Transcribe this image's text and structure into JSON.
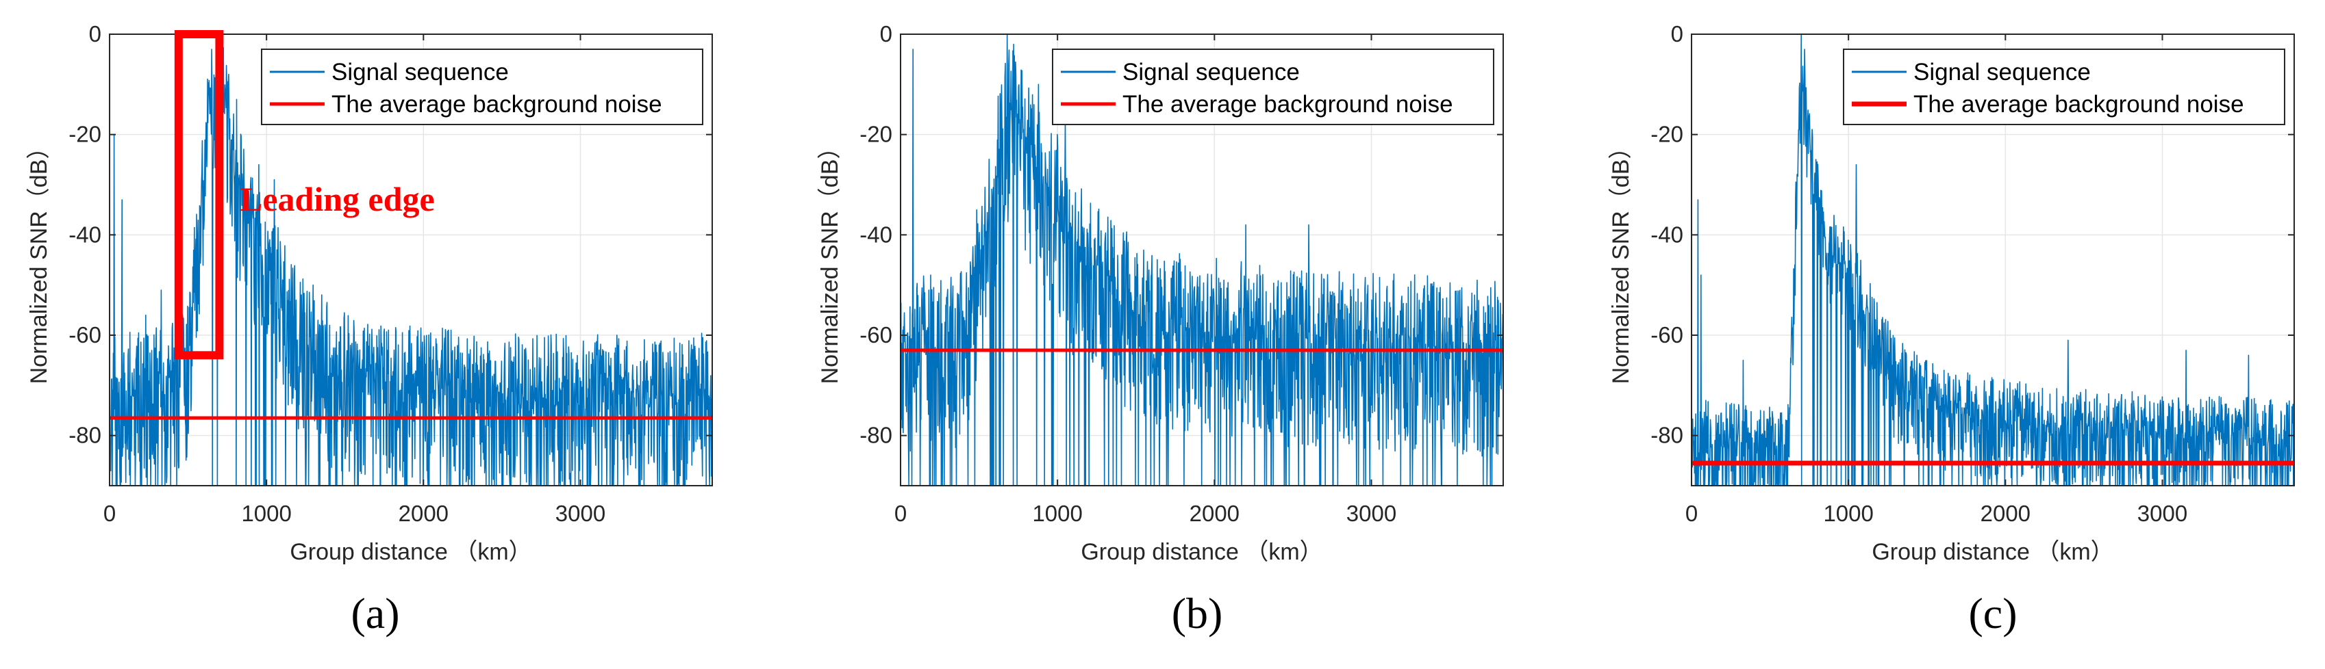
{
  "chart_data": [
    {
      "type": "line",
      "panel_label": "(a)",
      "xlabel": "Group distance （km）",
      "ylabel": "Normalized SNR（dB）",
      "xlim": [
        0,
        3840
      ],
      "ylim": [
        -90,
        0
      ],
      "xticks": [
        0,
        1000,
        2000,
        3000
      ],
      "xtick_labels": [
        "0",
        "1000",
        "2000",
        "3000"
      ],
      "yticks": [
        0,
        -20,
        -40,
        -60,
        -80
      ],
      "ytick_labels": [
        "0",
        "-20",
        "-40",
        "-60",
        "-80"
      ],
      "grid": true,
      "legend_position": "top-right",
      "series": [
        {
          "name": "Signal sequence",
          "color": "#0072BD",
          "kind": "noisy-signal",
          "noise_floor_db": -76,
          "noise_spread_db": 11,
          "seed": 11,
          "profile": [
            [
              0,
              -68
            ],
            [
              400,
              -66
            ],
            [
              500,
              -60
            ],
            [
              560,
              -40
            ],
            [
              610,
              -20
            ],
            [
              650,
              -8
            ],
            [
              700,
              -5
            ],
            [
              760,
              -18
            ],
            [
              850,
              -30
            ],
            [
              1000,
              -40
            ],
            [
              1200,
              -55
            ],
            [
              1400,
              -62
            ],
            [
              1700,
              -66
            ],
            [
              2500,
              -68
            ],
            [
              3840,
              -68
            ]
          ],
          "spikes": [
            [
              30,
              -20
            ],
            [
              80,
              -33
            ],
            [
              230,
              -56
            ],
            [
              330,
              -51
            ],
            [
              650,
              -3
            ],
            [
              700,
              -2
            ],
            [
              760,
              -8
            ],
            [
              810,
              -13
            ],
            [
              950,
              -26
            ],
            [
              1050,
              -29
            ]
          ]
        },
        {
          "name": "The average background noise",
          "color": "#FF0000",
          "kind": "constant",
          "values": [
            -76.5,
            -76.5
          ],
          "x": [
            0,
            3840
          ]
        }
      ],
      "annotation": {
        "text": "Leading edge",
        "color": "#FF0000",
        "box_x_range": [
          440,
          700
        ],
        "box_y_range": [
          -64,
          0
        ]
      }
    },
    {
      "type": "line",
      "panel_label": "(b)",
      "xlabel": "Group distance （km）",
      "ylabel": "Normalized SNR（dB）",
      "xlim": [
        0,
        3840
      ],
      "ylim": [
        -90,
        0
      ],
      "xticks": [
        0,
        1000,
        2000,
        3000
      ],
      "xtick_labels": [
        "0",
        "1000",
        "2000",
        "3000"
      ],
      "yticks": [
        0,
        -20,
        -40,
        -60,
        -80
      ],
      "ytick_labels": [
        "0",
        "-20",
        "-40",
        "-60",
        "-80"
      ],
      "grid": true,
      "legend_position": "top-right",
      "series": [
        {
          "name": "Signal sequence",
          "color": "#0072BD",
          "kind": "noisy-signal",
          "noise_floor_db": -63,
          "noise_spread_db": 12,
          "seed": 23,
          "profile": [
            [
              0,
              -58
            ],
            [
              400,
              -56
            ],
            [
              550,
              -35
            ],
            [
              650,
              -15
            ],
            [
              700,
              -10
            ],
            [
              800,
              -18
            ],
            [
              950,
              -28
            ],
            [
              1100,
              -38
            ],
            [
              1300,
              -45
            ],
            [
              1600,
              -52
            ],
            [
              2500,
              -56
            ],
            [
              3840,
              -58
            ]
          ],
          "spikes": [
            [
              80,
              -3
            ],
            [
              680,
              0
            ],
            [
              720,
              -2
            ],
            [
              880,
              -10
            ],
            [
              1000,
              -20
            ],
            [
              1050,
              -17
            ],
            [
              2200,
              -38
            ],
            [
              2600,
              -38
            ]
          ]
        },
        {
          "name": "The average background noise",
          "color": "#FF0000",
          "kind": "constant",
          "values": [
            -63,
            -63
          ],
          "x": [
            0,
            3840
          ]
        }
      ]
    },
    {
      "type": "line",
      "panel_label": "(c)",
      "xlabel": "Group distance （km）",
      "ylabel": "Normalized SNR（dB）",
      "xlim": [
        0,
        3840
      ],
      "ylim": [
        -90,
        0
      ],
      "xticks": [
        0,
        1000,
        2000,
        3000
      ],
      "xtick_labels": [
        "0",
        "1000",
        "2000",
        "3000"
      ],
      "yticks": [
        0,
        -20,
        -40,
        -60,
        -80
      ],
      "ytick_labels": [
        "0",
        "-20",
        "-40",
        "-60",
        "-80"
      ],
      "grid": true,
      "legend_position": "top-right",
      "series": [
        {
          "name": "Signal sequence",
          "color": "#0072BD",
          "kind": "noisy-signal",
          "noise_floor_db": -85.5,
          "noise_spread_db": 7,
          "seed": 37,
          "profile": [
            [
              0,
              -78
            ],
            [
              600,
              -80
            ],
            [
              640,
              -60
            ],
            [
              680,
              -20
            ],
            [
              700,
              -5
            ],
            [
              760,
              -22
            ],
            [
              850,
              -38
            ],
            [
              1000,
              -45
            ],
            [
              1150,
              -55
            ],
            [
              1300,
              -66
            ],
            [
              1600,
              -72
            ],
            [
              2400,
              -76
            ],
            [
              3840,
              -78
            ]
          ],
          "spikes": [
            [
              40,
              -33
            ],
            [
              60,
              -48
            ],
            [
              330,
              -65
            ],
            [
              700,
              0
            ],
            [
              720,
              -3
            ],
            [
              1050,
              -26
            ],
            [
              2400,
              -61
            ],
            [
              3150,
              -63
            ],
            [
              3550,
              -64
            ]
          ]
        },
        {
          "name": "The average background noise",
          "color": "#FF0000",
          "kind": "constant",
          "values": [
            -85.5,
            -85.5
          ],
          "x": [
            0,
            3840
          ]
        }
      ]
    }
  ]
}
